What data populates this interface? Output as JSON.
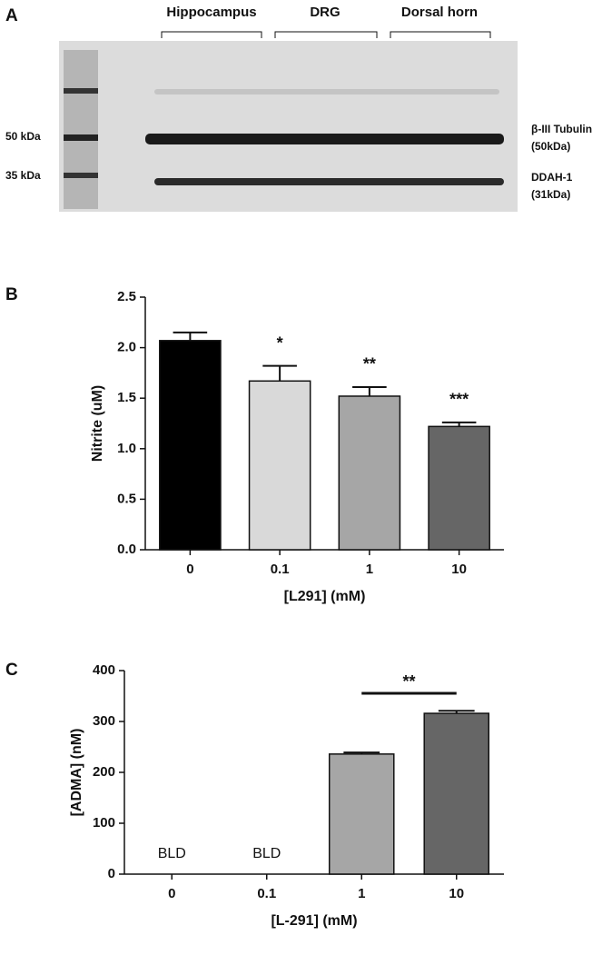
{
  "panel_a": {
    "label": "A",
    "groups": [
      "Hippocampus",
      "DRG",
      "Dorsal horn"
    ],
    "markers": [
      "50 kDa",
      "35 kDa"
    ],
    "bands": [
      "β-III Tubulin",
      "(50kDa)",
      "DDAH-1",
      "(31kDa)"
    ]
  },
  "chart_data": [
    {
      "type": "bar",
      "panel": "B",
      "xlabel": "[L291] (mM)",
      "ylabel": "Nitrite (uM)",
      "categories": [
        "0",
        "0.1",
        "1",
        "10"
      ],
      "values": [
        2.07,
        1.67,
        1.52,
        1.22
      ],
      "errors": [
        0.08,
        0.15,
        0.09,
        0.04
      ],
      "colors": [
        "#000000",
        "#d9d9d9",
        "#a6a6a6",
        "#666666"
      ],
      "annotations": [
        null,
        "*",
        "**",
        "***"
      ],
      "ylim": [
        0,
        2.5
      ],
      "yticks": [
        {
          "value": 0,
          "label": "0.0"
        },
        0.5,
        {
          "value": 1,
          "label": "1.0"
        },
        1.5,
        {
          "value": 2,
          "label": "2.0"
        },
        2.5
      ]
    },
    {
      "type": "bar",
      "panel": "C",
      "xlabel": "[L-291] (mM)",
      "ylabel": "[ADMA] (nM)",
      "categories": [
        "0",
        "0.1",
        "1",
        "10"
      ],
      "values": [
        null,
        null,
        236,
        316
      ],
      "errors": [
        null,
        null,
        3,
        5
      ],
      "value_labels": [
        "BLD",
        "BLD",
        null,
        null
      ],
      "colors": [
        "#a6a6a6",
        "#a6a6a6",
        "#a6a6a6",
        "#666666"
      ],
      "bracket": {
        "from": 2,
        "to": 3,
        "label": "**"
      },
      "ylim": [
        0,
        400
      ],
      "yticks": [
        0,
        100,
        200,
        300,
        400
      ]
    }
  ]
}
